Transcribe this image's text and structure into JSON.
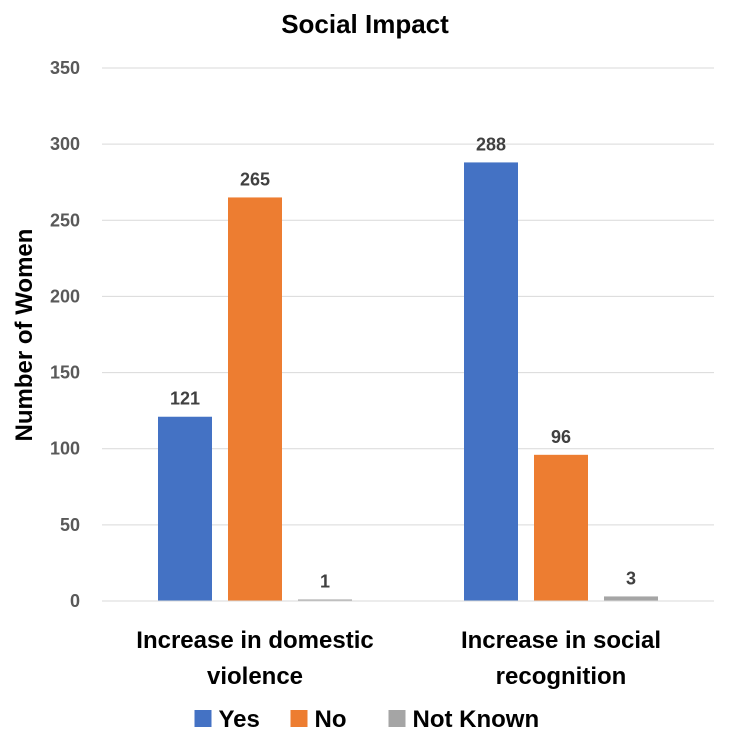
{
  "chart_data": {
    "type": "bar",
    "title": "Social Impact",
    "xlabel": "",
    "ylabel": "Number of Women",
    "ylim": [
      0,
      350
    ],
    "yticks": [
      0,
      50,
      100,
      150,
      200,
      250,
      300,
      350
    ],
    "grid": true,
    "legend_position": "bottom",
    "categories": [
      [
        "Increase in domestic",
        "violence"
      ],
      [
        "Increase in social",
        "recognition"
      ]
    ],
    "series": [
      {
        "name": "Yes",
        "color": "#4472c4",
        "values": [
          121,
          288
        ]
      },
      {
        "name": "No",
        "color": "#ed7d31",
        "values": [
          265,
          96
        ]
      },
      {
        "name": "Not Known",
        "color": "#a5a5a5",
        "values": [
          1,
          3
        ]
      }
    ]
  }
}
